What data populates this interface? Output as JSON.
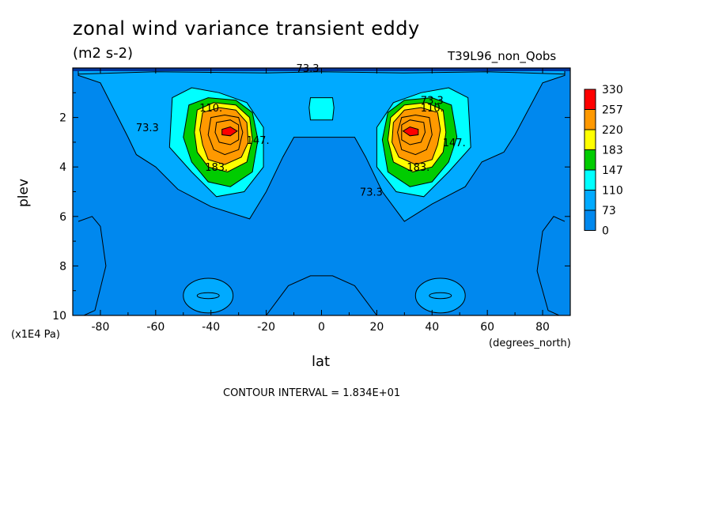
{
  "chart_data": {
    "type": "heatmap",
    "subtype": "filled-contour",
    "title": "zonal wind variance transient eddy",
    "units": "(m2 s-2)",
    "dataset": "T39L96_non_Qobs",
    "xlabel": "lat",
    "xunit": "(degrees_north)",
    "ylabel": "plev",
    "yunit": "(x1E4 Pa)",
    "xlim": [
      -90,
      90
    ],
    "ylim": [
      10,
      0
    ],
    "xticks": [
      -80,
      -60,
      -40,
      -20,
      0,
      20,
      40,
      60,
      80
    ],
    "yticks": [
      2,
      4,
      6,
      8,
      10
    ],
    "contour_interval_text": "CONTOUR INTERVAL = 1.834E+01",
    "colorbar": {
      "labels": [
        "330",
        "257",
        "220",
        "183",
        "147",
        "110",
        "73",
        "0"
      ],
      "colors": [
        "#ff0000",
        "#ff9900",
        "#ffff00",
        "#00cc00",
        "#00ffff",
        "#00aaff",
        "#0088ee"
      ]
    },
    "contour_labels": [
      {
        "text": "73.3",
        "lat": -5,
        "plev": 0.0
      },
      {
        "text": "73.3",
        "lat": -63,
        "plev": 2.4
      },
      {
        "text": "110.",
        "lat": -40,
        "plev": 1.6
      },
      {
        "text": "147.",
        "lat": -23,
        "plev": 2.9
      },
      {
        "text": "183.",
        "lat": -38,
        "plev": 4.0
      },
      {
        "text": "73.3",
        "lat": 40,
        "plev": 1.3
      },
      {
        "text": "110.",
        "lat": 40,
        "plev": 1.6
      },
      {
        "text": "147.",
        "lat": 48,
        "plev": 3.0
      },
      {
        "text": "183.",
        "lat": 35,
        "plev": 4.0
      },
      {
        "text": "73.3",
        "lat": 18,
        "plev": 5.0
      }
    ],
    "peaks": [
      {
        "lat": -33,
        "plev": 2.6,
        "value": 330
      },
      {
        "lat": 32,
        "plev": 2.6,
        "value": 330
      }
    ]
  }
}
